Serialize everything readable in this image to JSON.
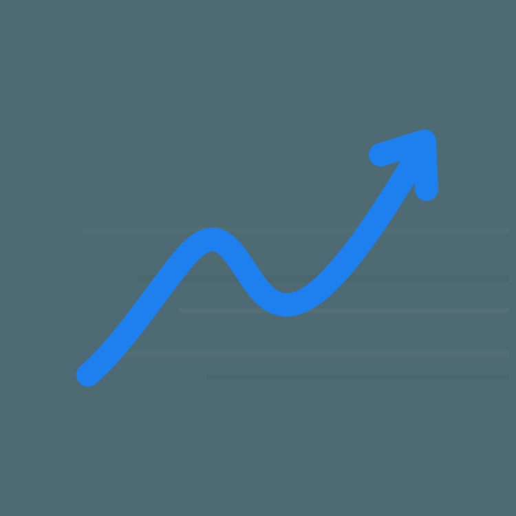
{
  "icon": {
    "name": "trend-up-arrow-icon",
    "stroke_color": "#1E80EE"
  },
  "background": {
    "stripe_colors": [
      "#4E6A72",
      "#566F76",
      "#4A666D",
      "#5A7378"
    ]
  }
}
